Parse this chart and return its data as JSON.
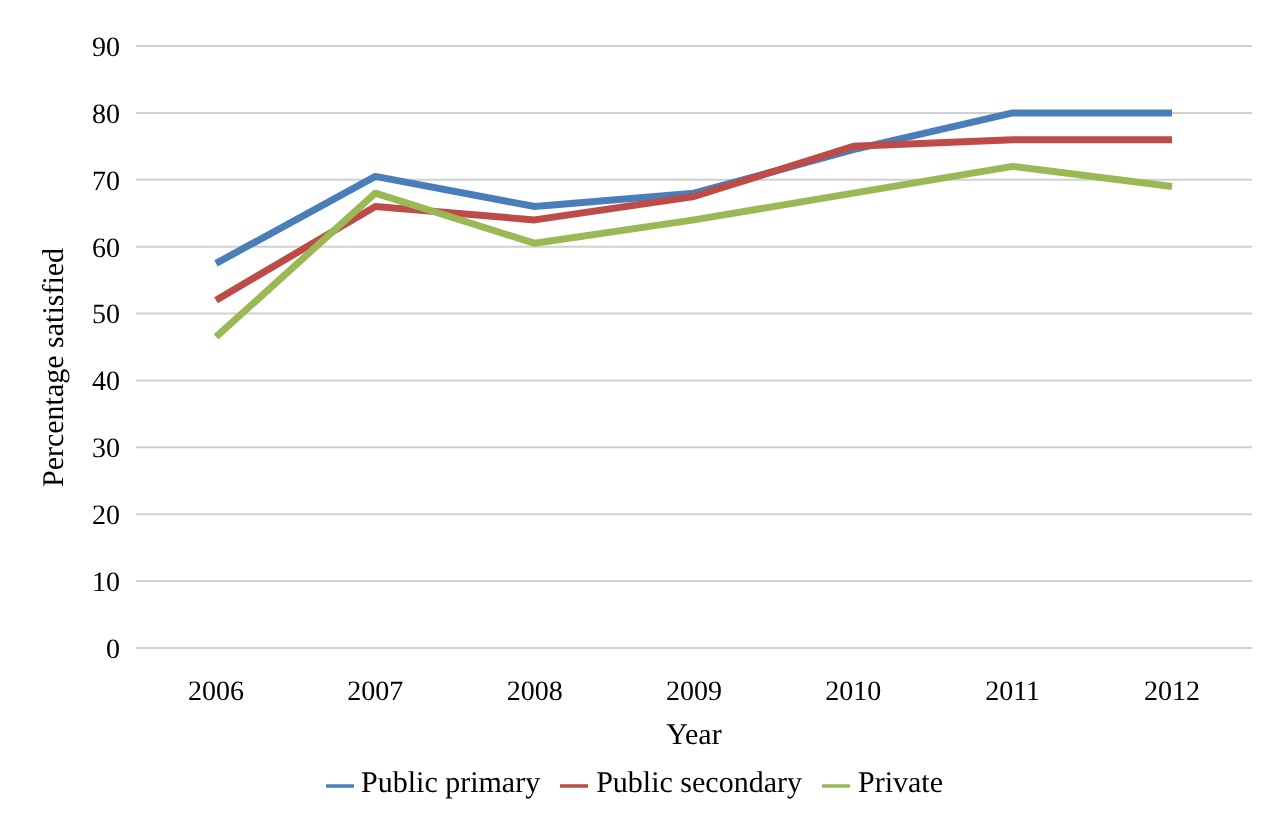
{
  "chart_data": {
    "type": "line",
    "xlabel": "Year",
    "ylabel": "Percentage  satisfied",
    "categories": [
      "2006",
      "2007",
      "2008",
      "2009",
      "2010",
      "2011",
      "2012"
    ],
    "series": [
      {
        "name": "Public primary",
        "color": "#4a7ebb",
        "values": [
          57.5,
          70.5,
          66,
          68,
          74.5,
          80,
          80
        ]
      },
      {
        "name": "Public secondary",
        "color": "#be4b48",
        "values": [
          52,
          66,
          64,
          67.5,
          75,
          76,
          76
        ]
      },
      {
        "name": "Private",
        "color": "#98b954",
        "values": [
          46.5,
          68,
          60.5,
          64,
          68,
          72,
          69
        ]
      }
    ],
    "ylim": [
      0,
      90
    ],
    "yticks": [
      0,
      10,
      20,
      30,
      40,
      50,
      60,
      70,
      80,
      90
    ],
    "grid": "y",
    "legend": "bottom",
    "marker": "none",
    "line_style": "solid"
  }
}
